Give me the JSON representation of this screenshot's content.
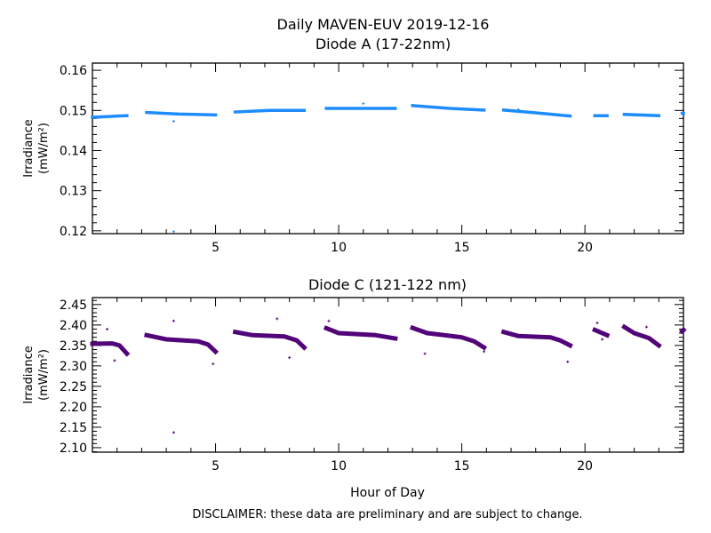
{
  "title": "Daily MAVEN-EUV 2019-12-16",
  "disclaimer": "DISCLAIMER: these data are preliminary and are subject to change.",
  "chart_data": [
    {
      "type": "scatter",
      "title": "Diode A (17-22nm)",
      "xlabel": "",
      "ylabel": "Irradiance",
      "yunits": "(mW/m²)",
      "xlim": [
        0,
        24
      ],
      "ylim": [
        0.1193,
        0.1618
      ],
      "xticks": [
        5,
        10,
        15,
        20
      ],
      "yticks": [
        0.12,
        0.13,
        0.14,
        0.15,
        0.16
      ],
      "ytick_labels": [
        "0.12",
        "0.13",
        "0.14",
        "0.15",
        "0.16"
      ],
      "color": "#1E8CFF",
      "segments": [
        [
          [
            0.0,
            0.1483
          ],
          [
            0.7,
            0.1485
          ],
          [
            1.4,
            0.1487
          ]
        ],
        [
          [
            2.2,
            0.1495
          ],
          [
            3.5,
            0.1491
          ],
          [
            5.0,
            0.1489
          ]
        ],
        [
          [
            5.8,
            0.1496
          ],
          [
            7.2,
            0.15
          ],
          [
            8.6,
            0.15
          ]
        ],
        [
          [
            9.5,
            0.1505
          ],
          [
            11.0,
            0.1505
          ],
          [
            12.3,
            0.1505
          ]
        ],
        [
          [
            13.0,
            0.1512
          ],
          [
            14.5,
            0.1505
          ],
          [
            15.9,
            0.1501
          ]
        ],
        [
          [
            16.7,
            0.1501
          ],
          [
            18.0,
            0.1494
          ],
          [
            19.4,
            0.1486
          ]
        ],
        [
          [
            20.4,
            0.1487
          ],
          [
            20.9,
            0.1487
          ]
        ],
        [
          [
            21.6,
            0.149
          ],
          [
            23.0,
            0.1487
          ]
        ],
        [
          [
            23.95,
            0.1493
          ],
          [
            24.0,
            0.1493
          ]
        ]
      ],
      "outliers": [
        [
          3.3,
          0.1473
        ],
        [
          3.3,
          0.1198
        ],
        [
          11.0,
          0.1517
        ],
        [
          17.3,
          0.1502
        ]
      ]
    },
    {
      "type": "scatter",
      "title": "Diode C (121-122 nm)",
      "xlabel": "Hour of Day",
      "ylabel": "Irradiance",
      "yunits": "(mW/m²)",
      "xlim": [
        0,
        24
      ],
      "ylim": [
        2.089,
        2.467
      ],
      "xticks": [
        5,
        10,
        15,
        20
      ],
      "yticks": [
        2.1,
        2.15,
        2.2,
        2.25,
        2.3,
        2.35,
        2.4,
        2.45
      ],
      "ytick_labels": [
        "2.10",
        "2.15",
        "2.20",
        "2.25",
        "2.30",
        "2.35",
        "2.40",
        "2.45"
      ],
      "color": "#52057A",
      "segments": [
        [
          [
            0.0,
            2.354
          ],
          [
            0.8,
            2.355
          ],
          [
            1.1,
            2.35
          ],
          [
            1.4,
            2.33
          ]
        ],
        [
          [
            2.2,
            2.375
          ],
          [
            3.0,
            2.365
          ],
          [
            4.3,
            2.36
          ],
          [
            4.7,
            2.352
          ],
          [
            5.0,
            2.335
          ]
        ],
        [
          [
            5.8,
            2.383
          ],
          [
            6.5,
            2.375
          ],
          [
            7.8,
            2.372
          ],
          [
            8.3,
            2.362
          ],
          [
            8.6,
            2.345
          ]
        ],
        [
          [
            9.5,
            2.392
          ],
          [
            10.0,
            2.38
          ],
          [
            11.5,
            2.375
          ],
          [
            12.3,
            2.367
          ]
        ],
        [
          [
            13.0,
            2.393
          ],
          [
            13.6,
            2.38
          ],
          [
            15.0,
            2.37
          ],
          [
            15.5,
            2.36
          ],
          [
            15.9,
            2.345
          ]
        ],
        [
          [
            16.7,
            2.383
          ],
          [
            17.3,
            2.373
          ],
          [
            18.6,
            2.37
          ],
          [
            19.0,
            2.362
          ],
          [
            19.4,
            2.35
          ]
        ],
        [
          [
            20.4,
            2.388
          ],
          [
            20.9,
            2.375
          ]
        ],
        [
          [
            21.6,
            2.395
          ],
          [
            22.0,
            2.38
          ],
          [
            22.6,
            2.368
          ],
          [
            23.0,
            2.35
          ]
        ],
        [
          [
            23.95,
            2.385
          ],
          [
            24.0,
            2.388
          ]
        ]
      ],
      "outliers": [
        [
          3.3,
          2.137
        ],
        [
          3.3,
          2.41
        ],
        [
          0.6,
          2.39
        ],
        [
          0.9,
          2.313
        ],
        [
          7.5,
          2.415
        ],
        [
          4.9,
          2.305
        ],
        [
          8.0,
          2.32
        ],
        [
          9.6,
          2.41
        ],
        [
          13.5,
          2.33
        ],
        [
          15.9,
          2.335
        ],
        [
          19.3,
          2.31
        ],
        [
          20.5,
          2.405
        ],
        [
          20.7,
          2.365
        ],
        [
          22.5,
          2.395
        ]
      ]
    }
  ]
}
